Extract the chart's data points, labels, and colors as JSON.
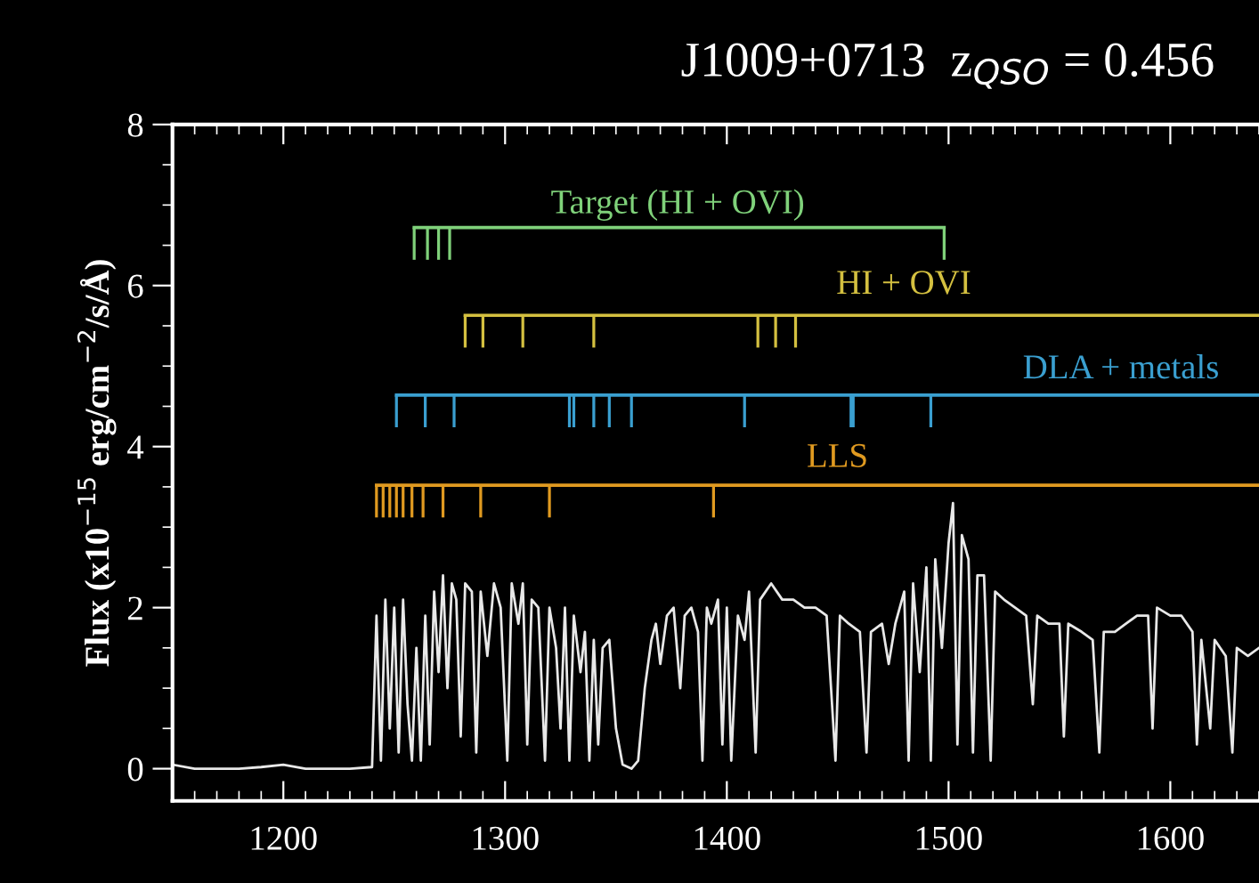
{
  "chart_data": {
    "type": "line",
    "title": "J1009+0713  z$_{QSO}$ = 0.456",
    "ylabel": "Flux (x10$^{−15}$ erg/cm$^{−2}$/s/Å)",
    "xlim": [
      1150,
      1640
    ],
    "ylim": [
      -0.4,
      8
    ],
    "xticks": [
      1200,
      1300,
      1400,
      1500,
      1600
    ],
    "yticks": [
      0,
      2,
      4,
      6,
      8
    ],
    "grid": false,
    "legend": false,
    "series": [
      {
        "color": "#e8e8e8",
        "marker": "none",
        "x": [
          1150,
          1160,
          1170,
          1180,
          1190,
          1200,
          1210,
          1220,
          1230,
          1240,
          1242,
          1244,
          1246,
          1248,
          1250,
          1252,
          1254,
          1256,
          1258,
          1260,
          1262,
          1264,
          1266,
          1268,
          1270,
          1272,
          1274,
          1276,
          1278,
          1280,
          1282,
          1285,
          1287,
          1289,
          1292,
          1295,
          1298,
          1301,
          1303,
          1306,
          1308,
          1310,
          1312,
          1315,
          1318,
          1320,
          1323,
          1325,
          1327,
          1329,
          1331,
          1334,
          1336,
          1338,
          1340,
          1342,
          1344,
          1347,
          1350,
          1353,
          1357,
          1360,
          1363,
          1366,
          1368,
          1370,
          1373,
          1376,
          1379,
          1381,
          1384,
          1387,
          1389,
          1391,
          1393,
          1396,
          1398,
          1400,
          1402,
          1405,
          1408,
          1410,
          1413,
          1415,
          1420,
          1425,
          1430,
          1435,
          1440,
          1445,
          1449,
          1451,
          1455,
          1460,
          1463,
          1465,
          1470,
          1473,
          1476,
          1480,
          1482,
          1484,
          1487,
          1490,
          1492,
          1494,
          1497,
          1500,
          1502,
          1504,
          1506,
          1509,
          1511,
          1513,
          1516,
          1519,
          1521,
          1525,
          1530,
          1535,
          1538,
          1540,
          1545,
          1550,
          1552,
          1554,
          1560,
          1565,
          1568,
          1570,
          1575,
          1580,
          1585,
          1590,
          1592,
          1594,
          1600,
          1605,
          1610,
          1612,
          1614,
          1618,
          1620,
          1625,
          1628,
          1630,
          1635,
          1640
        ],
        "values": [
          0.05,
          0.0,
          0.0,
          0.0,
          0.02,
          0.05,
          0.0,
          0.0,
          0.0,
          0.02,
          1.9,
          0.1,
          2.1,
          0.5,
          2.0,
          0.2,
          2.1,
          0.8,
          0.1,
          1.5,
          0.1,
          1.9,
          0.3,
          2.2,
          1.2,
          2.4,
          1.0,
          2.3,
          2.1,
          0.4,
          2.3,
          2.2,
          0.2,
          2.2,
          1.4,
          2.3,
          2.0,
          0.1,
          2.3,
          1.8,
          2.3,
          0.3,
          2.1,
          2.0,
          0.1,
          2.0,
          1.5,
          0.5,
          2.0,
          0.1,
          1.9,
          1.2,
          1.7,
          0.1,
          1.6,
          0.3,
          1.5,
          1.6,
          0.5,
          0.05,
          0.0,
          0.1,
          1.0,
          1.6,
          1.8,
          1.3,
          1.9,
          2.0,
          1.0,
          1.9,
          2.0,
          1.7,
          0.1,
          2.0,
          1.8,
          2.1,
          0.3,
          2.0,
          0.1,
          1.9,
          1.6,
          2.2,
          0.2,
          2.1,
          2.3,
          2.1,
          2.1,
          2.0,
          2.0,
          1.9,
          0.1,
          1.9,
          1.8,
          1.7,
          0.2,
          1.7,
          1.8,
          1.3,
          1.8,
          2.2,
          0.1,
          2.3,
          1.2,
          2.5,
          0.1,
          2.6,
          1.5,
          2.8,
          3.3,
          0.3,
          2.9,
          2.6,
          0.2,
          2.4,
          2.4,
          0.1,
          2.2,
          2.1,
          2.0,
          1.9,
          0.8,
          1.9,
          1.8,
          1.8,
          0.4,
          1.8,
          1.7,
          1.6,
          0.2,
          1.7,
          1.7,
          1.8,
          1.9,
          1.9,
          0.5,
          2.0,
          1.9,
          1.9,
          1.7,
          0.3,
          1.6,
          0.5,
          1.6,
          1.4,
          0.2,
          1.5,
          1.4,
          1.5
        ]
      },
      {
        "type": "line",
        "name": "Target (HI + OVI)",
        "color": "#7fd17a",
        "marker": "none",
        "x": [
          1259,
          1498
        ],
        "values": [
          6.72,
          6.72
        ]
      },
      {
        "type": "bar",
        "color": "#7fd17a",
        "x": [
          1259,
          1265,
          1270,
          1275,
          1498
        ],
        "base": [
          6.32,
          6.32,
          6.32,
          6.32,
          6.32
        ],
        "values": [
          0.4,
          0.4,
          0.4,
          0.4,
          0.4
        ]
      },
      {
        "type": "line",
        "name": "HI + OVI",
        "color": "#d4c040",
        "marker": "none",
        "x": [
          1282,
          1640
        ],
        "values": [
          5.63,
          5.63
        ]
      },
      {
        "type": "bar",
        "color": "#d4c040",
        "x": [
          1282,
          1290,
          1308,
          1340,
          1414,
          1422,
          1431
        ],
        "base": [
          5.23,
          5.23,
          5.23,
          5.23,
          5.23,
          5.23,
          5.23
        ],
        "values": [
          0.4,
          0.4,
          0.4,
          0.4,
          0.4,
          0.4,
          0.4
        ]
      },
      {
        "type": "line",
        "name": "DLA + metals",
        "color": "#3a9fd0",
        "marker": "none",
        "x": [
          1251,
          1640
        ],
        "values": [
          4.64,
          4.64
        ]
      },
      {
        "type": "bar",
        "color": "#3a9fd0",
        "x": [
          1251,
          1264,
          1277,
          1329,
          1331,
          1340,
          1347,
          1357,
          1408,
          1456,
          1457,
          1492
        ],
        "base": [
          4.24,
          4.24,
          4.24,
          4.24,
          4.24,
          4.24,
          4.24,
          4.24,
          4.24,
          4.24,
          4.24,
          4.24
        ],
        "values": [
          0.4,
          0.4,
          0.4,
          0.4,
          0.4,
          0.4,
          0.4,
          0.4,
          0.4,
          0.4,
          0.4,
          0.4
        ]
      },
      {
        "type": "line",
        "name": "LLS",
        "color": "#e09a20",
        "marker": "none",
        "x": [
          1242,
          1640
        ],
        "values": [
          3.52,
          3.52
        ]
      },
      {
        "type": "bar",
        "color": "#e09a20",
        "x": [
          1242,
          1245,
          1248,
          1251,
          1254,
          1258,
          1263,
          1272,
          1289,
          1320,
          1394
        ],
        "base": [
          3.12,
          3.12,
          3.12,
          3.12,
          3.12,
          3.12,
          3.12,
          3.12,
          3.12,
          3.12,
          3.12
        ],
        "values": [
          0.4,
          0.4,
          0.4,
          0.4,
          0.4,
          0.4,
          0.4,
          0.4,
          0.4,
          0.4,
          0.4
        ]
      }
    ]
  }
}
